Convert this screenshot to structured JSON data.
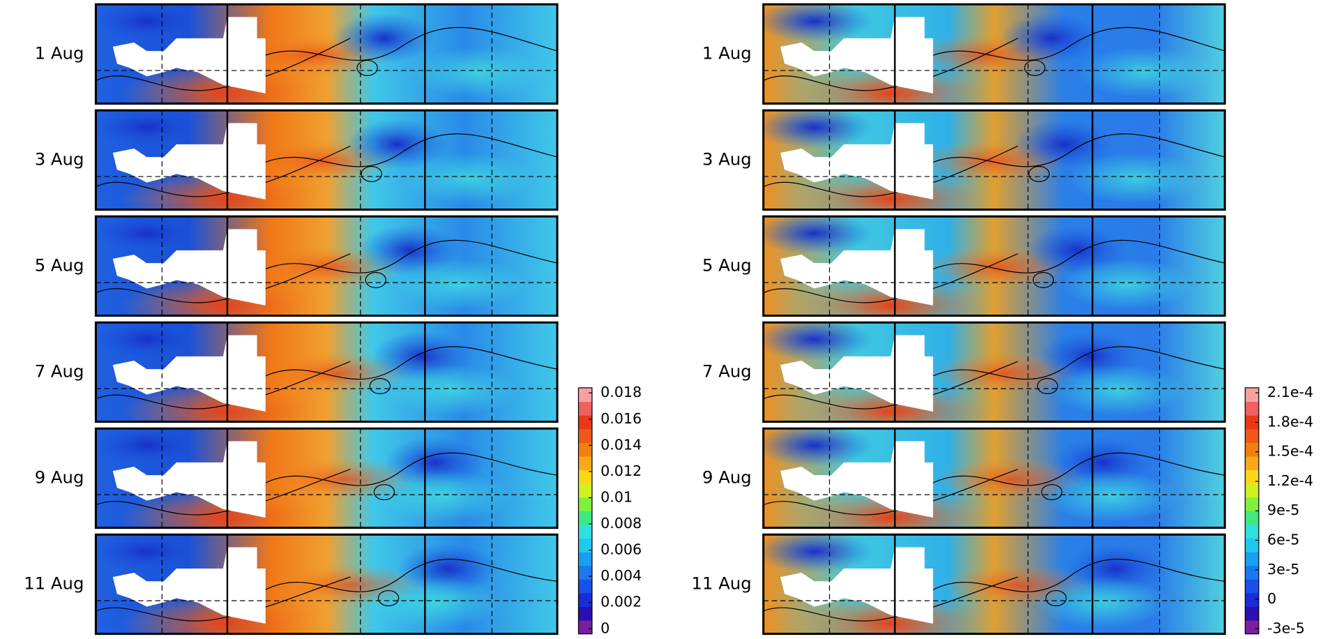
{
  "left": {
    "row_labels": [
      "1 Aug",
      "3 Aug",
      "5 Aug",
      "7 Aug",
      "9 Aug",
      "11 Aug"
    ],
    "colorbar": {
      "lim": [
        0,
        0.018
      ],
      "ticks": [
        0,
        0.002,
        0.004,
        0.006,
        0.008,
        0.01,
        0.012,
        0.014,
        0.016,
        0.018
      ],
      "colors": [
        "#7a1fa0",
        "#2a10b0",
        "#1a2cd8",
        "#1a50e8",
        "#1a78ef",
        "#1aa0f0",
        "#20c8f0",
        "#30e0e0",
        "#40e880",
        "#80f040",
        "#d0f020",
        "#f8d818",
        "#f8a818",
        "#f08010",
        "#f05818",
        "#e83818",
        "#f06060",
        "#f8a0a0"
      ]
    }
  },
  "right": {
    "row_labels": [
      "1 Aug",
      "3 Aug",
      "5 Aug",
      "7 Aug",
      "9 Aug",
      "11 Aug"
    ],
    "colorbar": {
      "lim": [
        -3e-05,
        0.00021
      ],
      "ticks": [
        {
          "value": -3e-05,
          "label": "-3e-5"
        },
        0,
        {
          "value": 3e-05,
          "label": "3e-5"
        },
        {
          "value": 6e-05,
          "label": "6e-5"
        },
        {
          "value": 9e-05,
          "label": "9e-5"
        },
        {
          "value": 0.00012,
          "label": "1.2e-4"
        },
        {
          "value": 0.00015,
          "label": "1.5e-4"
        },
        {
          "value": 0.00018,
          "label": "1.8e-4"
        },
        {
          "value": 0.00021,
          "label": "2.1e-4"
        }
      ],
      "colors": [
        "#7a1fa0",
        "#2a10b0",
        "#1a2cd8",
        "#1a50e8",
        "#1a78ef",
        "#1aa0f0",
        "#20c8f0",
        "#30e0e0",
        "#40e880",
        "#80f040",
        "#d0f020",
        "#f8d818",
        "#f8a818",
        "#f08010",
        "#f05818",
        "#e83818",
        "#f06060",
        "#f8a0a0"
      ]
    }
  }
}
